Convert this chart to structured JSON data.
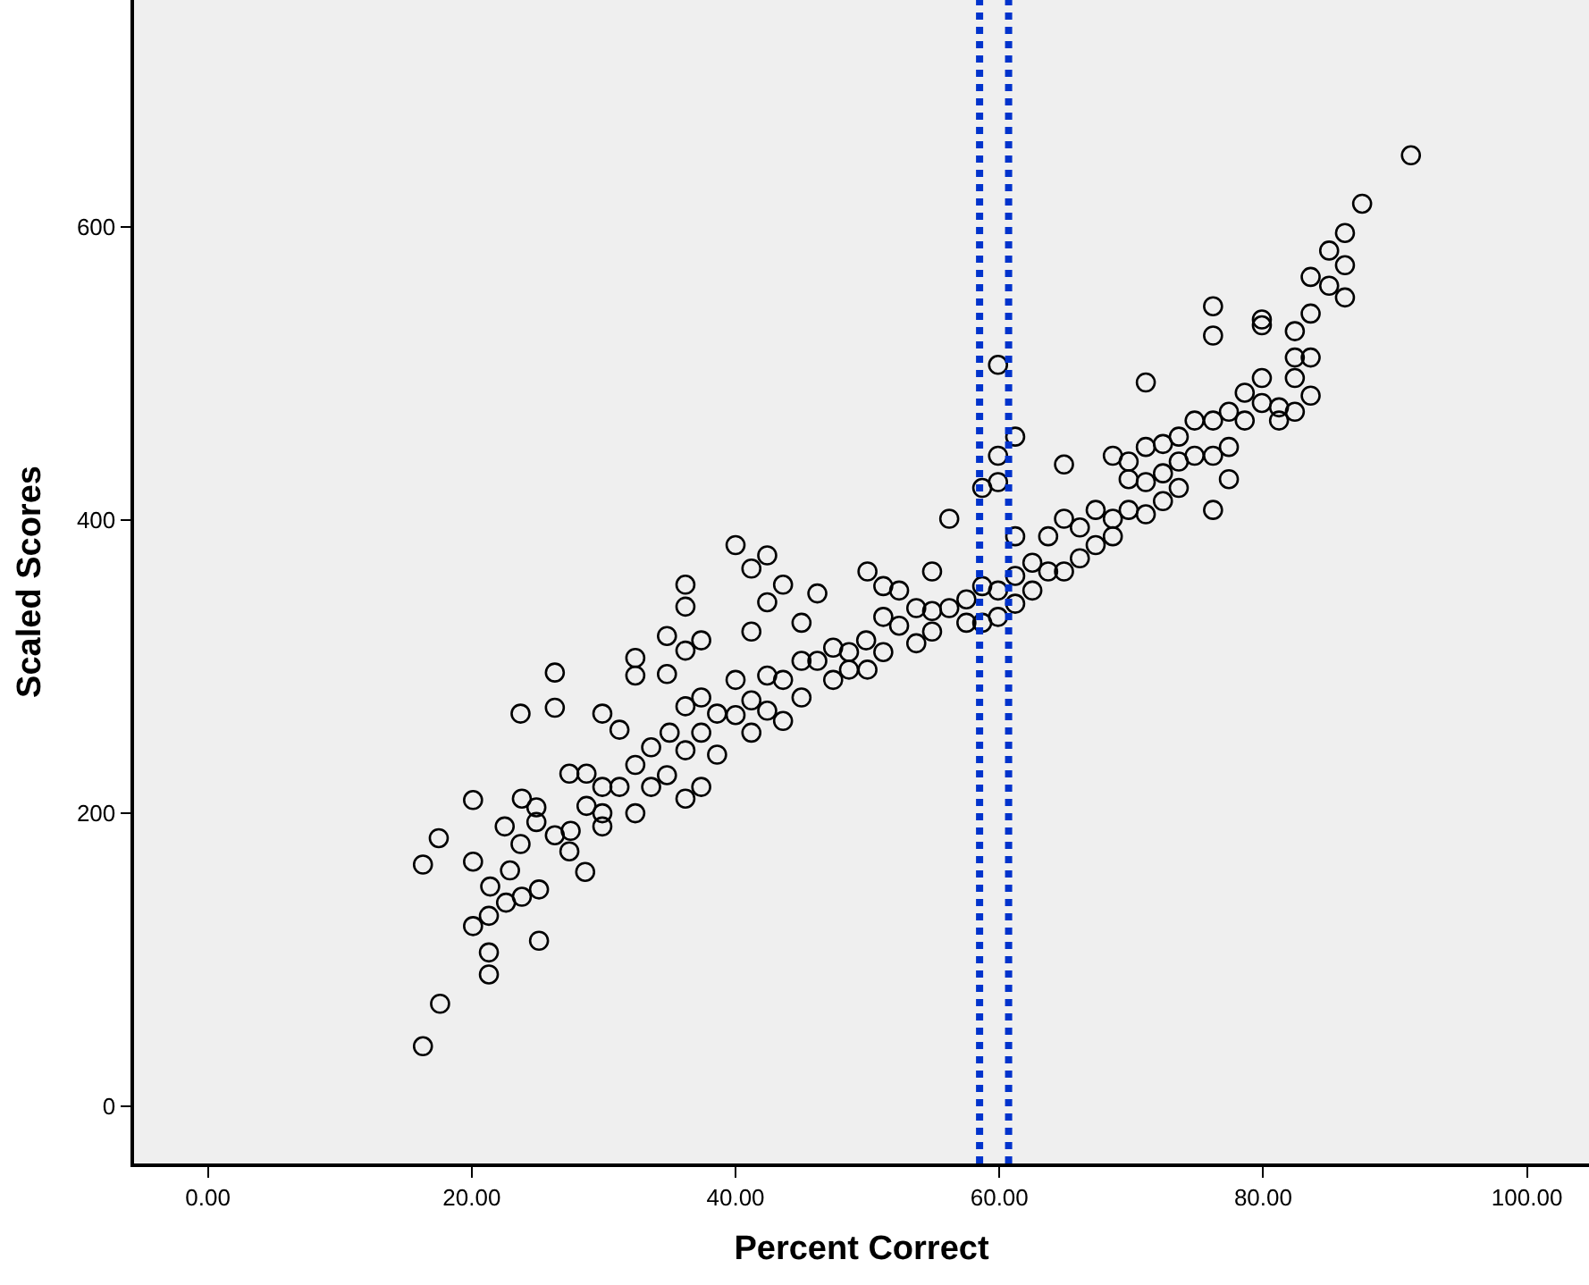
{
  "chart_data": {
    "type": "scatter",
    "xlabel": "Percent Correct",
    "ylabel": "Scaled Scores",
    "xlim": [
      -5.6,
      104.7
    ],
    "ylim": [
      -39,
      755
    ],
    "xticks": [
      {
        "value": 0,
        "label": "0.00"
      },
      {
        "value": 20,
        "label": "20.00"
      },
      {
        "value": 40,
        "label": "40.00"
      },
      {
        "value": 60,
        "label": "60.00"
      },
      {
        "value": 80,
        "label": "80.00"
      },
      {
        "value": 100,
        "label": "100.00"
      }
    ],
    "yticks": [
      0,
      200,
      400,
      600
    ],
    "grid": false,
    "marker": "circle",
    "ref_lines": [
      {
        "axis": "x",
        "value": 58.5,
        "color": "#0033cc",
        "line_style": "dotted"
      },
      {
        "axis": "x",
        "value": 60.7,
        "color": "#0033cc",
        "line_style": "dotted"
      }
    ],
    "series": [
      {
        "color": "#000000",
        "x": [
          16.3,
          17.6,
          16.3,
          17.5,
          20.1,
          20.1,
          20.1,
          21.3,
          21.3,
          21.4,
          21.3,
          22.5,
          22.6,
          22.9,
          23.7,
          23.8,
          23.7,
          23.8,
          25.1,
          25.1,
          24.9,
          24.9,
          26.3,
          26.3,
          26.3,
          27.4,
          27.4,
          27.5,
          28.7,
          28.6,
          28.7,
          29.9,
          29.9,
          29.9,
          29.9,
          31.2,
          31.2,
          32.4,
          32.4,
          32.4,
          32.4,
          33.6,
          33.6,
          34.8,
          34.8,
          35.0,
          34.8,
          36.2,
          36.2,
          36.2,
          36.2,
          36.2,
          36.2,
          37.4,
          37.4,
          37.4,
          37.4,
          38.6,
          38.6,
          40.0,
          40.0,
          40.0,
          41.2,
          41.2,
          41.2,
          41.2,
          42.4,
          42.4,
          42.4,
          42.4,
          43.6,
          43.6,
          43.6,
          45.0,
          45.0,
          45.0,
          46.2,
          46.2,
          47.4,
          47.4,
          48.6,
          48.6,
          49.9,
          50.0,
          50.0,
          51.2,
          51.2,
          51.2,
          52.4,
          52.4,
          53.7,
          53.7,
          54.9,
          54.9,
          54.9,
          56.2,
          56.2,
          57.5,
          57.5,
          58.7,
          58.7,
          58.7,
          59.9,
          59.9,
          59.9,
          59.9,
          59.9,
          61.2,
          61.2,
          61.2,
          61.2,
          62.5,
          62.5,
          63.7,
          63.7,
          64.9,
          64.9,
          64.9,
          66.1,
          66.1,
          67.3,
          67.3,
          68.6,
          68.6,
          68.6,
          69.8,
          69.8,
          69.8,
          71.1,
          71.1,
          71.1,
          71.1,
          72.4,
          72.4,
          72.4,
          73.6,
          73.6,
          73.6,
          74.8,
          74.8,
          76.2,
          76.2,
          76.2,
          76.2,
          76.2,
          77.4,
          77.4,
          77.4,
          78.6,
          78.6,
          79.9,
          79.9,
          79.9,
          79.9,
          81.2,
          81.2,
          82.4,
          82.4,
          82.4,
          82.4,
          83.6,
          83.6,
          83.6,
          83.6,
          85.0,
          85.0,
          86.2,
          86.2,
          86.2,
          87.5,
          91.2
        ],
        "values": [
          41,
          70,
          165,
          183,
          209,
          167,
          123,
          105,
          90,
          150,
          130,
          191,
          139,
          161,
          179,
          143,
          268,
          210,
          148,
          113,
          204,
          194,
          296,
          272,
          185,
          227,
          174,
          188,
          227,
          160,
          205,
          268,
          218,
          200,
          191,
          257,
          218,
          306,
          294,
          233,
          200,
          245,
          218,
          321,
          295,
          255,
          226,
          356,
          341,
          311,
          273,
          243,
          210,
          318,
          279,
          255,
          218,
          268,
          240,
          383,
          291,
          267,
          367,
          324,
          277,
          255,
          376,
          344,
          294,
          270,
          356,
          291,
          263,
          330,
          304,
          279,
          350,
          304,
          313,
          291,
          310,
          298,
          318,
          365,
          298,
          355,
          334,
          310,
          352,
          328,
          340,
          316,
          365,
          338,
          324,
          401,
          340,
          346,
          330,
          422,
          355,
          330,
          506,
          444,
          426,
          352,
          334,
          457,
          389,
          362,
          343,
          371,
          352,
          389,
          365,
          438,
          401,
          365,
          395,
          374,
          407,
          383,
          444,
          401,
          389,
          440,
          428,
          407,
          494,
          450,
          426,
          404,
          452,
          432,
          413,
          457,
          440,
          422,
          468,
          444,
          546,
          526,
          468,
          444,
          407,
          474,
          450,
          428,
          487,
          468,
          537,
          533,
          497,
          480,
          477,
          468,
          529,
          511,
          497,
          474,
          541,
          511,
          485,
          566,
          560,
          584,
          574,
          552,
          596,
          616,
          649
        ]
      }
    ]
  }
}
